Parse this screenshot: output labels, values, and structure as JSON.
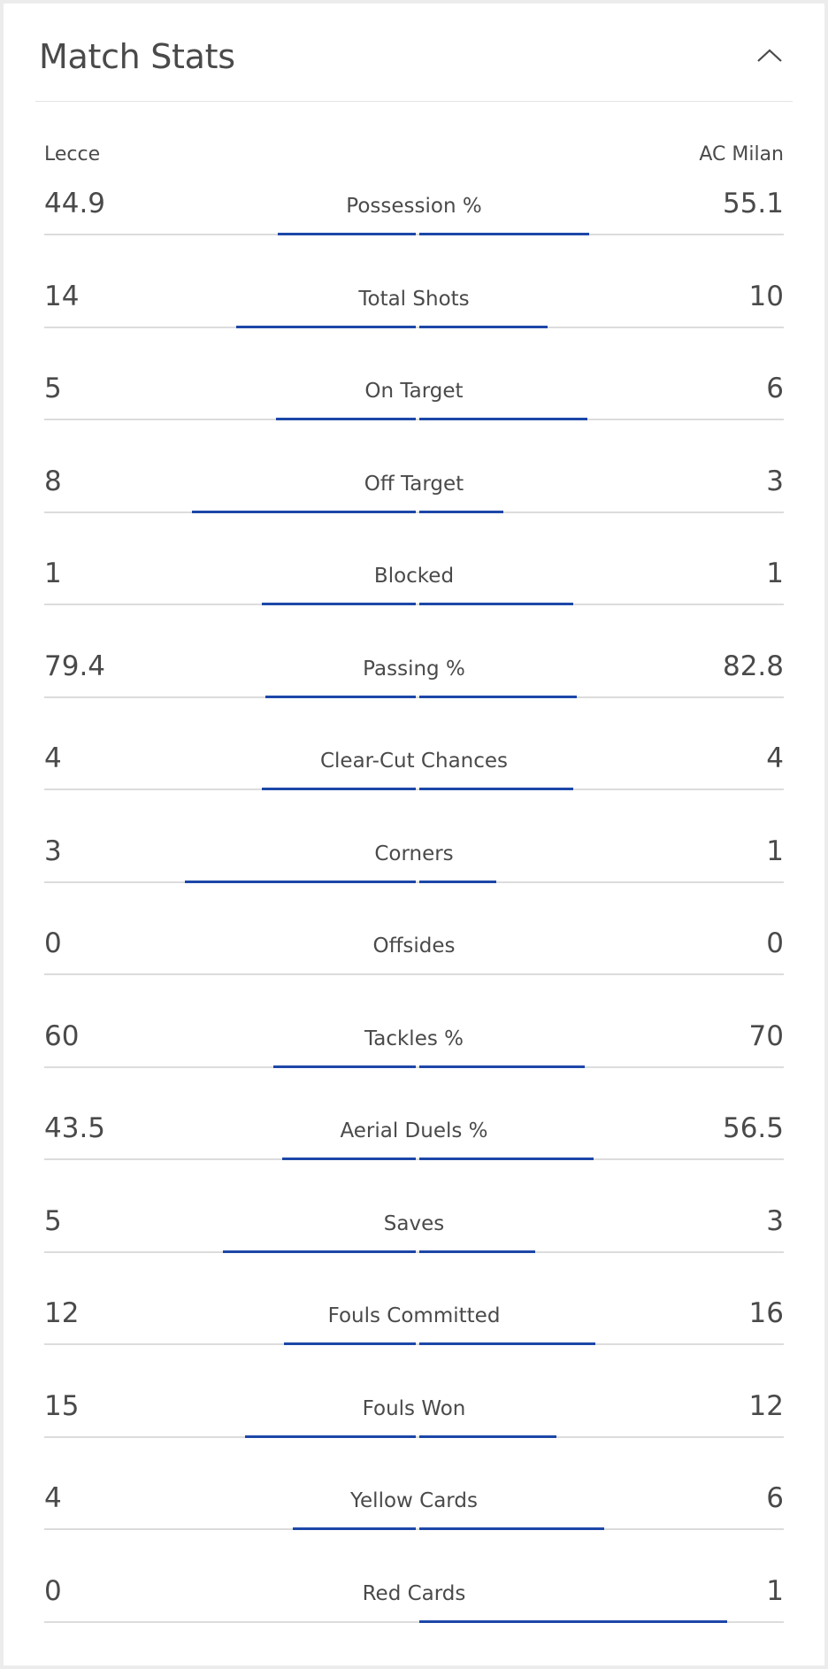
{
  "header": {
    "title": "Match Stats"
  },
  "teams": {
    "home": "Lecce",
    "away": "AC Milan"
  },
  "colors": {
    "bar": "#1d47a8",
    "track": "#dcdcdc",
    "text": "#4a4a4a"
  },
  "icons": {
    "collapse": "chevron-up-icon"
  },
  "stats": [
    {
      "label": "Possession %",
      "home": "44.9",
      "away": "55.1"
    },
    {
      "label": "Total Shots",
      "home": "14",
      "away": "10"
    },
    {
      "label": "On Target",
      "home": "5",
      "away": "6"
    },
    {
      "label": "Off Target",
      "home": "8",
      "away": "3"
    },
    {
      "label": "Blocked",
      "home": "1",
      "away": "1"
    },
    {
      "label": "Passing %",
      "home": "79.4",
      "away": "82.8"
    },
    {
      "label": "Clear-Cut Chances",
      "home": "4",
      "away": "4"
    },
    {
      "label": "Corners",
      "home": "3",
      "away": "1"
    },
    {
      "label": "Offsides",
      "home": "0",
      "away": "0"
    },
    {
      "label": "Tackles %",
      "home": "60",
      "away": "70"
    },
    {
      "label": "Aerial Duels %",
      "home": "43.5",
      "away": "56.5"
    },
    {
      "label": "Saves",
      "home": "5",
      "away": "3"
    },
    {
      "label": "Fouls Committed",
      "home": "12",
      "away": "16"
    },
    {
      "label": "Fouls Won",
      "home": "15",
      "away": "12"
    },
    {
      "label": "Yellow Cards",
      "home": "4",
      "away": "6"
    },
    {
      "label": "Red Cards",
      "home": "0",
      "away": "1"
    }
  ]
}
